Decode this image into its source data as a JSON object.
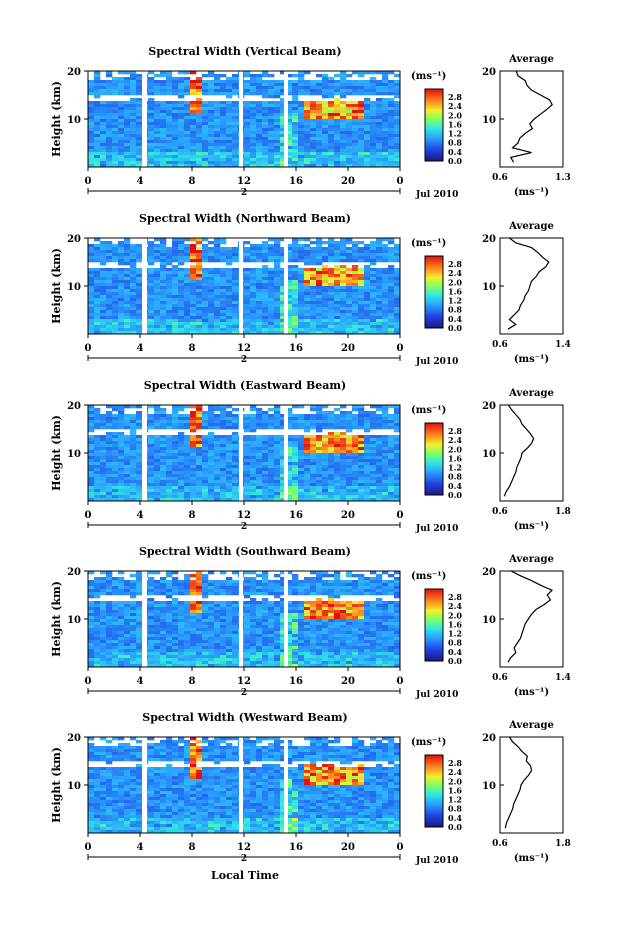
{
  "chart_data": {
    "type": "heatmap",
    "xlabel": "Local Time",
    "x_ticks": [
      "0",
      "4",
      "8",
      "12",
      "16",
      "20",
      "0"
    ],
    "date_label": "Jul 2010",
    "day_label": "2",
    "ylabel": "Height (km)",
    "y_ticks": [
      "20",
      "10"
    ],
    "ylim": [
      0,
      20
    ],
    "colorbar": {
      "unit_label": "(ms⁻¹)",
      "ticks": [
        "2.8",
        "2.4",
        "2.0",
        "1.6",
        "1.2",
        "0.8",
        "0.4",
        "0.0"
      ],
      "range": [
        0.0,
        3.0
      ]
    },
    "average_title": "Average",
    "average_unit": "(ms⁻¹)",
    "panels": [
      {
        "title": "Spectral Width (Vertical Beam)",
        "avg_xlim": [
          0.6,
          1.3
        ],
        "avg_xticks": [
          "0.6",
          "1.3"
        ],
        "avg_profile": {
          "heights": [
            1,
            2,
            3,
            4,
            5,
            6,
            7,
            8,
            9,
            10,
            11,
            12,
            13,
            14,
            15,
            16,
            17,
            18,
            19,
            20
          ],
          "values": [
            0.75,
            0.72,
            0.95,
            0.74,
            0.8,
            0.82,
            0.88,
            0.96,
            0.93,
            0.98,
            1.05,
            1.12,
            1.18,
            1.15,
            1.05,
            0.95,
            0.9,
            0.88,
            0.8,
            0.78
          ]
        }
      },
      {
        "title": "Spectral Width (Northward Beam)",
        "avg_xlim": [
          0.6,
          1.4
        ],
        "avg_xticks": [
          "0.6",
          "1.4"
        ],
        "avg_profile": {
          "heights": [
            1,
            2,
            3,
            4,
            5,
            6,
            7,
            8,
            9,
            10,
            11,
            12,
            13,
            14,
            15,
            16,
            17,
            18,
            19,
            20
          ],
          "values": [
            0.7,
            0.8,
            0.72,
            0.78,
            0.84,
            0.86,
            0.9,
            0.92,
            0.96,
            0.98,
            1.0,
            1.06,
            1.1,
            1.18,
            1.22,
            1.14,
            1.08,
            1.0,
            0.8,
            0.72
          ]
        }
      },
      {
        "title": "Spectral Width (Eastward Beam)",
        "avg_xlim": [
          0.6,
          1.8
        ],
        "avg_xticks": [
          "0.6",
          "1.8"
        ],
        "avg_profile": {
          "heights": [
            1,
            2,
            3,
            4,
            5,
            6,
            7,
            8,
            9,
            10,
            11,
            12,
            13,
            14,
            15,
            16,
            17,
            18,
            19,
            20
          ],
          "values": [
            0.68,
            0.72,
            0.78,
            0.82,
            0.86,
            0.9,
            0.92,
            0.96,
            1.0,
            1.02,
            1.12,
            1.2,
            1.24,
            1.18,
            1.1,
            1.02,
            0.98,
            0.9,
            0.82,
            0.76
          ]
        }
      },
      {
        "title": "Spectral Width (Southward Beam)",
        "avg_xlim": [
          0.6,
          1.4
        ],
        "avg_xticks": [
          "0.6",
          "1.4"
        ],
        "avg_profile": {
          "heights": [
            1,
            2,
            3,
            4,
            5,
            6,
            7,
            8,
            9,
            10,
            11,
            12,
            13,
            14,
            15,
            16,
            17,
            18,
            19,
            20
          ],
          "values": [
            0.7,
            0.74,
            0.8,
            0.78,
            0.82,
            0.86,
            0.88,
            0.9,
            0.92,
            0.96,
            1.0,
            1.06,
            1.16,
            1.24,
            1.2,
            1.26,
            1.12,
            1.0,
            0.86,
            0.74
          ]
        }
      },
      {
        "title": "Spectral Width (Westward Beam)",
        "avg_xlim": [
          0.6,
          1.8
        ],
        "avg_xticks": [
          "0.6",
          "1.8"
        ],
        "avg_profile": {
          "heights": [
            1,
            2,
            3,
            4,
            5,
            6,
            7,
            8,
            9,
            10,
            11,
            12,
            13,
            14,
            15,
            16,
            17,
            18,
            19,
            20
          ],
          "values": [
            0.7,
            0.72,
            0.76,
            0.8,
            0.84,
            0.86,
            0.9,
            0.94,
            0.98,
            1.0,
            1.06,
            1.14,
            1.2,
            1.18,
            1.1,
            1.12,
            1.02,
            0.94,
            0.84,
            0.78
          ]
        }
      }
    ]
  }
}
